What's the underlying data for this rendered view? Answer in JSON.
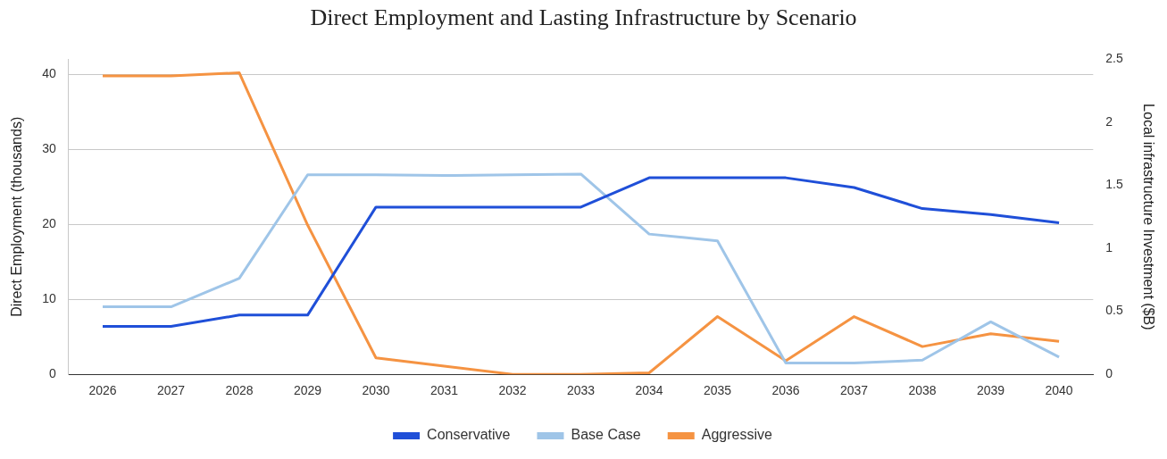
{
  "chart_data": {
    "type": "line",
    "title": "Direct Employment and Lasting Infrastructure by Scenario",
    "ylabel": "Direct Employment (thousands)",
    "y2label": "Local infrastructure Investment ($B)",
    "categories": [
      "2026",
      "2027",
      "2028",
      "2029",
      "2030",
      "2031",
      "2032",
      "2033",
      "2034",
      "2035",
      "2036",
      "2037",
      "2038",
      "2039",
      "2040"
    ],
    "series": [
      {
        "name": "Conservative",
        "color": "#1f4fd8",
        "values": [
          6.4,
          6.4,
          7.9,
          7.9,
          22.3,
          22.3,
          22.3,
          22.3,
          26.2,
          26.2,
          26.2,
          24.9,
          22.1,
          21.3,
          20.2
        ]
      },
      {
        "name": "Base Case",
        "color": "#9fc5e8",
        "values": [
          9.0,
          9.0,
          12.8,
          26.6,
          26.6,
          26.5,
          26.6,
          26.7,
          18.7,
          17.8,
          1.5,
          1.5,
          1.9,
          7.0,
          2.3
        ]
      },
      {
        "name": "Aggressive",
        "color": "#f59342",
        "values": [
          39.8,
          39.8,
          40.2,
          19.9,
          2.2,
          1.1,
          0,
          0,
          0.2,
          7.7,
          1.8,
          7.7,
          3.7,
          5.4,
          4.4
        ]
      }
    ],
    "ylim": [
      0,
      42
    ],
    "yticks": [
      0,
      10,
      20,
      30,
      40
    ],
    "y2lim": [
      0,
      2.5
    ],
    "y2ticks": [
      0,
      0.5,
      1,
      1.5,
      2,
      2.5
    ],
    "grid": "y",
    "legend": "bottom",
    "marker": "none",
    "line_style": "solid"
  }
}
